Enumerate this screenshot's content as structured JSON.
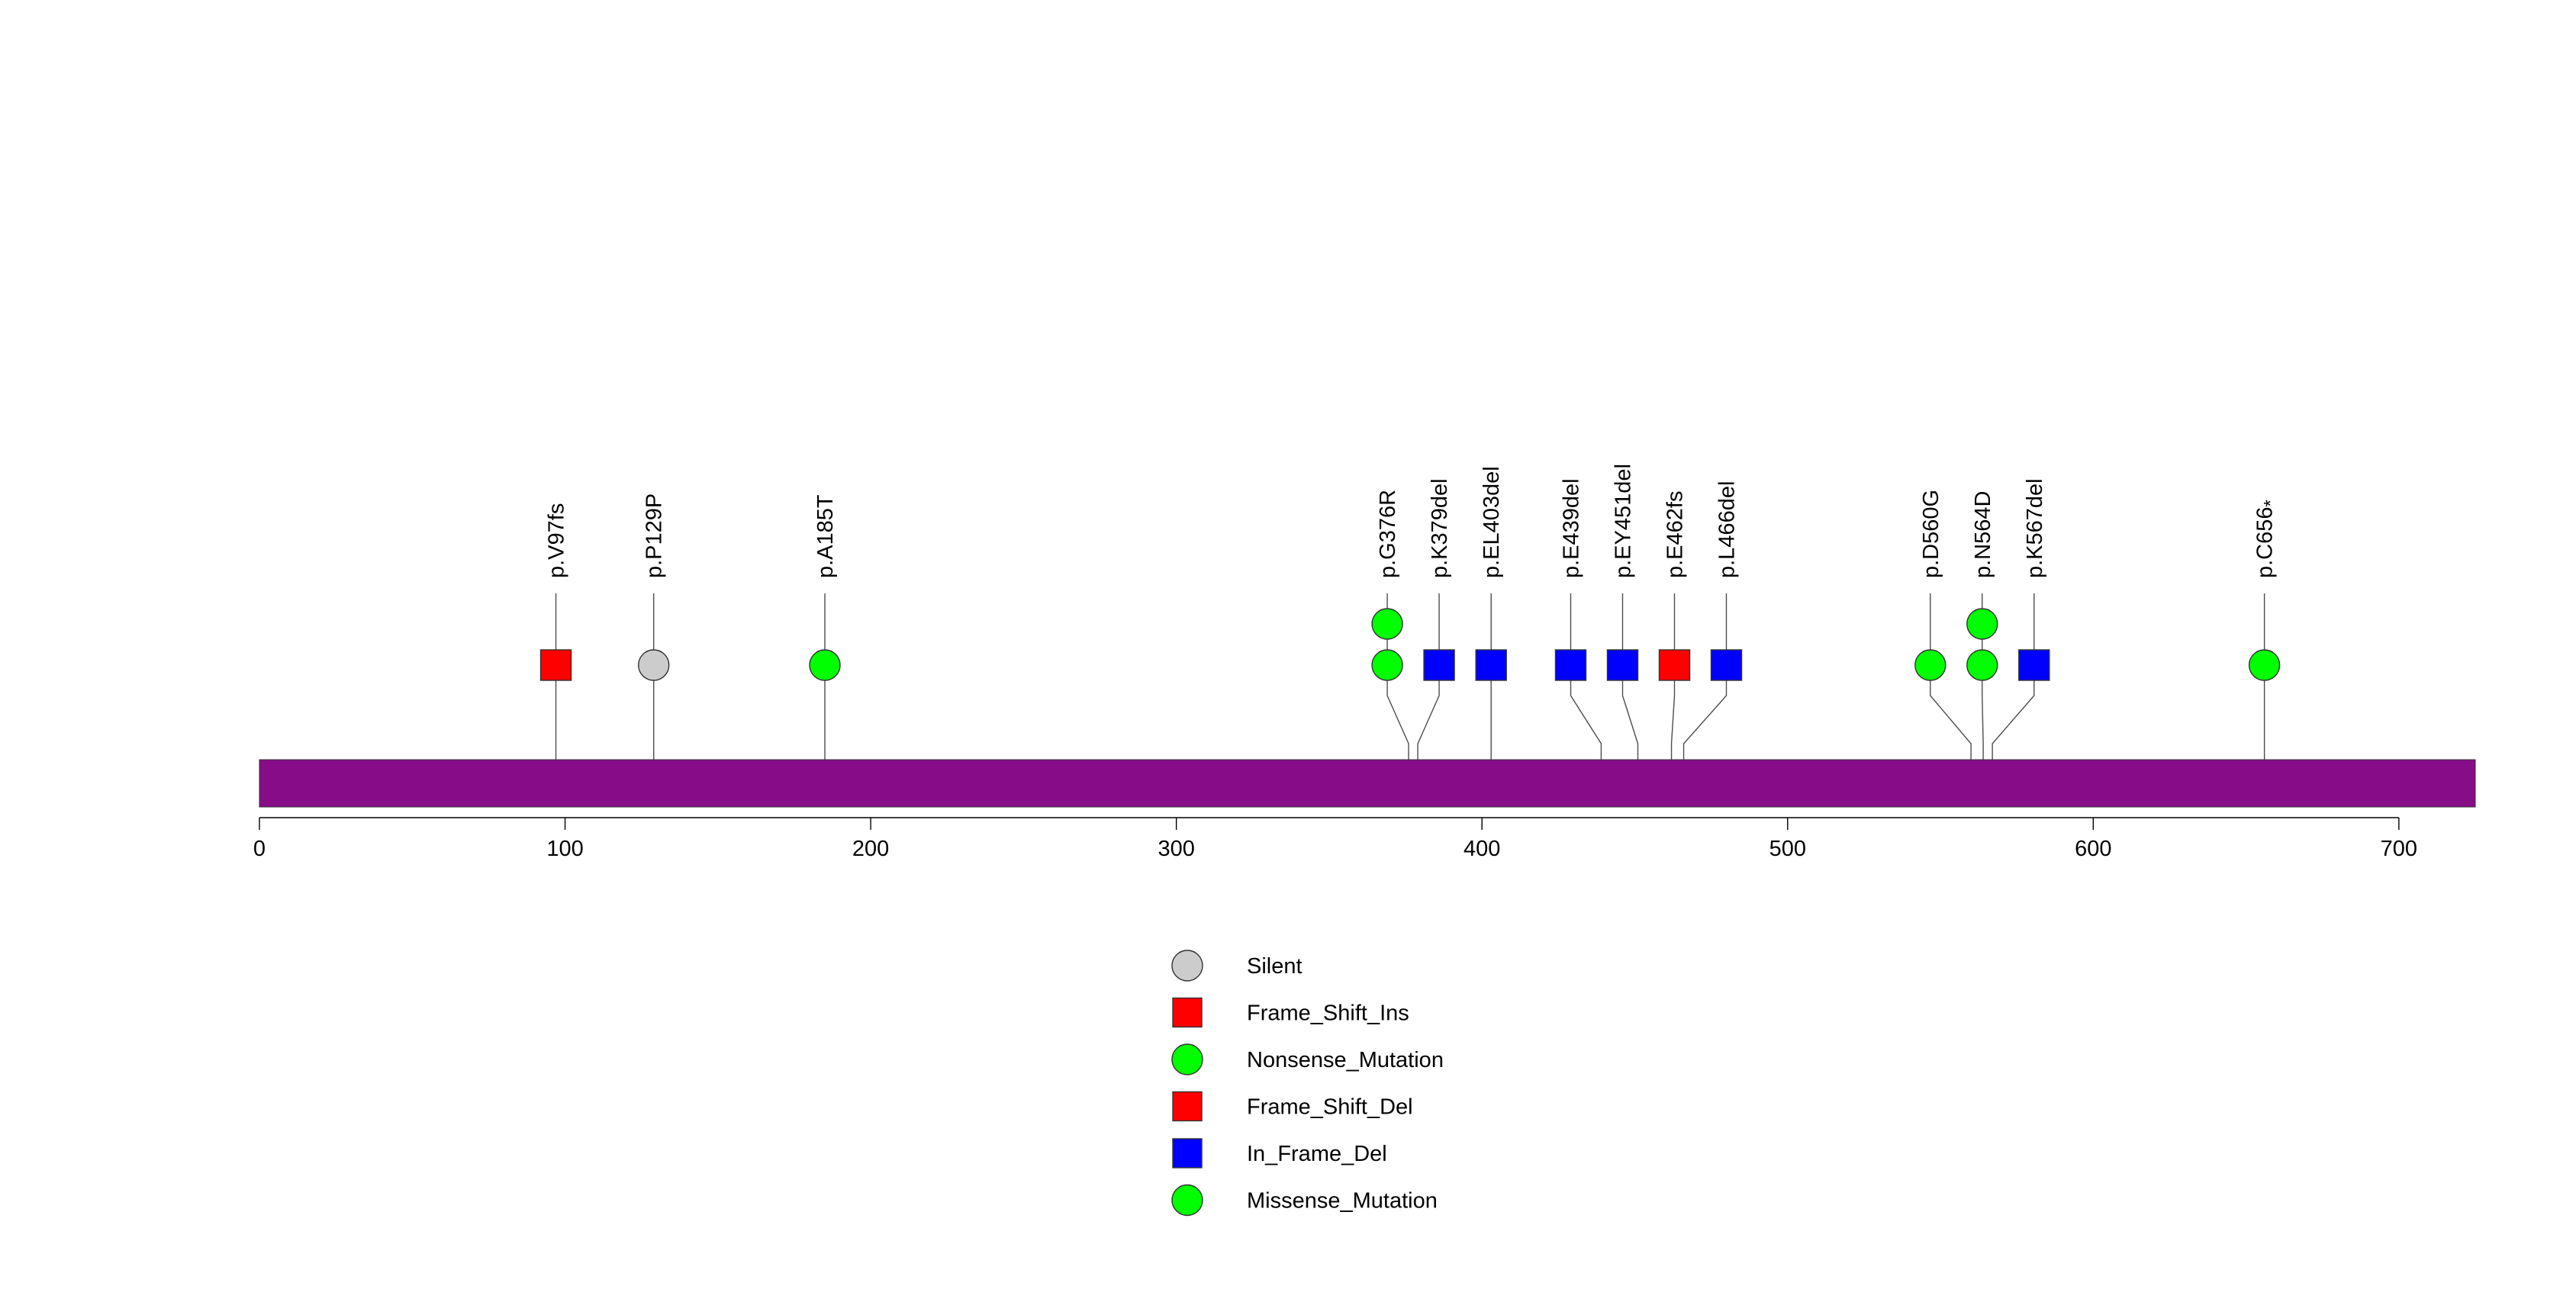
{
  "chart_data": {
    "type": "lollipop",
    "protein_length": 725,
    "bar_color": "#870C87",
    "x_ticks": [
      0,
      100,
      200,
      300,
      400,
      500,
      600,
      700
    ],
    "xlim": [
      0,
      725
    ],
    "mutations": [
      {
        "label": "p.V97fs",
        "label_main": "p.V97fs",
        "label_sub": "",
        "position": 97,
        "type": "Frame_Shift_Ins",
        "count": 1
      },
      {
        "label": "p.P129P",
        "label_main": "p.P129P",
        "label_sub": "",
        "position": 129,
        "type": "Silent",
        "count": 1
      },
      {
        "label": "p.A185T",
        "label_main": "p.A185T",
        "label_sub": "",
        "position": 185,
        "type": "Missense_Mutation",
        "count": 1
      },
      {
        "label": "p.G376R",
        "label_main": "p.G376R",
        "label_sub": "",
        "position": 376,
        "type": "Missense_Mutation",
        "count": 2
      },
      {
        "label": "p.K379del",
        "label_main": "p.K379del",
        "label_sub": "",
        "position": 379,
        "type": "In_Frame_Del",
        "count": 1
      },
      {
        "label": "p.EL403del",
        "label_main": "p.EL403del",
        "label_sub": "",
        "position": 403,
        "type": "In_Frame_Del",
        "count": 1
      },
      {
        "label": "p.E439del",
        "label_main": "p.E439del",
        "label_sub": "",
        "position": 439,
        "type": "In_Frame_Del",
        "count": 1
      },
      {
        "label": "p.EY451del",
        "label_main": "p.EY451del",
        "label_sub": "",
        "position": 451,
        "type": "In_Frame_Del",
        "count": 1
      },
      {
        "label": "p.E462fs",
        "label_main": "p.E462fs",
        "label_sub": "",
        "position": 462,
        "type": "Frame_Shift_Del",
        "count": 1
      },
      {
        "label": "p.L466del",
        "label_main": "p.L466del",
        "label_sub": "",
        "position": 466,
        "type": "In_Frame_Del",
        "count": 1
      },
      {
        "label": "p.D560G",
        "label_main": "p.D560G",
        "label_sub": "",
        "position": 560,
        "type": "Missense_Mutation",
        "count": 1
      },
      {
        "label": "p.N564D",
        "label_main": "p.N564D",
        "label_sub": "",
        "position": 564,
        "type": "Missense_Mutation",
        "count": 2
      },
      {
        "label": "p.K567del",
        "label_main": "p.K567del",
        "label_sub": "",
        "position": 567,
        "type": "In_Frame_Del",
        "count": 1
      },
      {
        "label": "p.C656*",
        "label_main": "p.C656",
        "label_sub": "*",
        "position": 656,
        "type": "Nonsense_Mutation",
        "count": 1
      }
    ],
    "legend": [
      {
        "label": "Silent",
        "shape": "circle",
        "color": "#CCCCCC"
      },
      {
        "label": "Frame_Shift_Ins",
        "shape": "square",
        "color": "#FF0000"
      },
      {
        "label": "Nonsense_Mutation",
        "shape": "circle",
        "color": "#00FF00"
      },
      {
        "label": "Frame_Shift_Del",
        "shape": "square",
        "color": "#FF0000"
      },
      {
        "label": "In_Frame_Del",
        "shape": "square",
        "color": "#0000FF"
      },
      {
        "label": "Missense_Mutation",
        "shape": "circle",
        "color": "#00FF00"
      }
    ]
  }
}
